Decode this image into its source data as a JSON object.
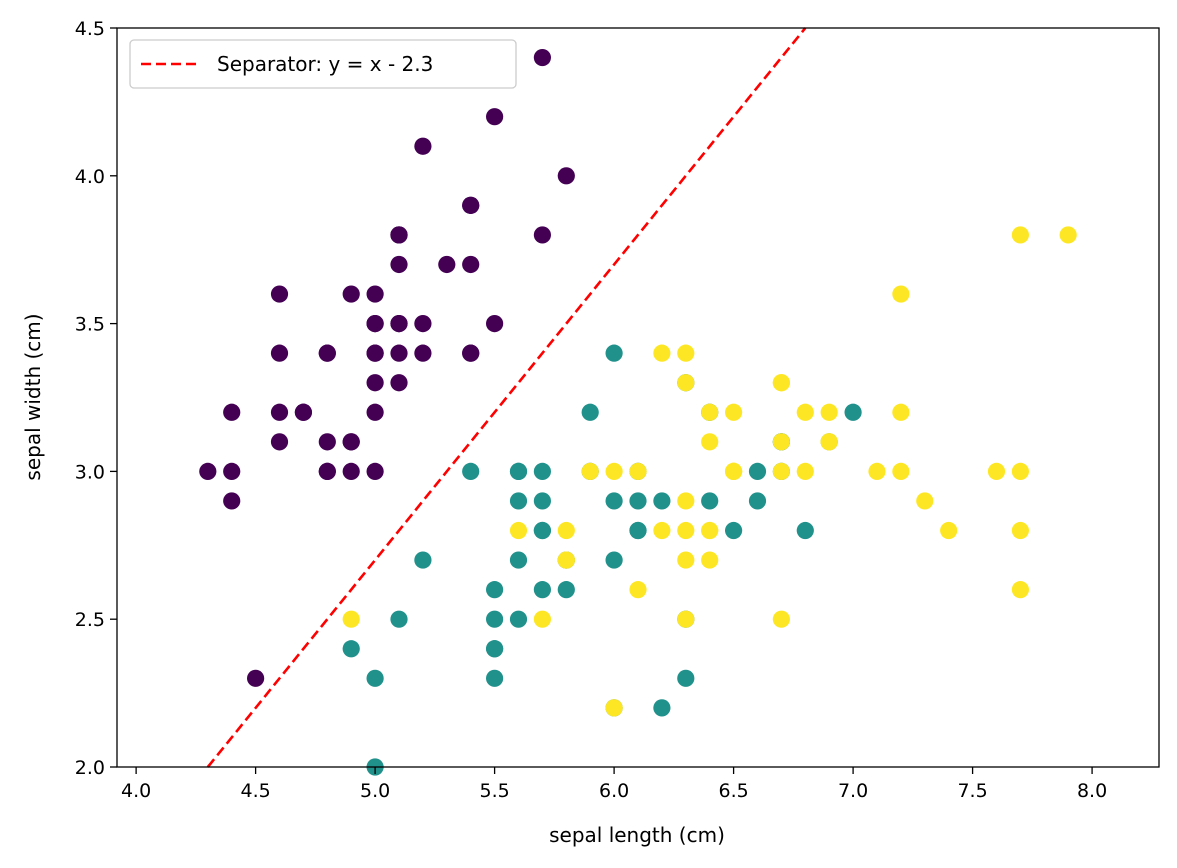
{
  "chart_data": {
    "type": "scatter",
    "title": "",
    "xlabel": "sepal length (cm)",
    "ylabel": "sepal width (cm)",
    "xlim": [
      3.92,
      8.28
    ],
    "ylim": [
      2.0,
      4.5
    ],
    "xticks": [
      "4.0",
      "4.5",
      "5.0",
      "5.5",
      "6.0",
      "6.5",
      "7.0",
      "7.5",
      "8.0"
    ],
    "yticks": [
      "2.0",
      "2.5",
      "3.0",
      "3.5",
      "4.0",
      "4.5"
    ],
    "grid": false,
    "legend": {
      "position": "top-left",
      "entries": [
        "Separator: y = x - 2.3"
      ]
    },
    "separator": {
      "label": "Separator: y = x - 2.3",
      "slope": 1,
      "intercept": -2.3,
      "style": "dashed",
      "color": "#ff0000"
    },
    "series": [
      {
        "color": "#440154",
        "points": [
          [
            5.1,
            3.5
          ],
          [
            4.9,
            3.0
          ],
          [
            4.7,
            3.2
          ],
          [
            4.6,
            3.1
          ],
          [
            5.0,
            3.6
          ],
          [
            5.4,
            3.9
          ],
          [
            4.6,
            3.4
          ],
          [
            5.0,
            3.4
          ],
          [
            4.4,
            2.9
          ],
          [
            4.9,
            3.1
          ],
          [
            5.4,
            3.7
          ],
          [
            4.8,
            3.4
          ],
          [
            4.8,
            3.0
          ],
          [
            4.3,
            3.0
          ],
          [
            5.8,
            4.0
          ],
          [
            5.7,
            4.4
          ],
          [
            5.4,
            3.9
          ],
          [
            5.1,
            3.5
          ],
          [
            5.7,
            3.8
          ],
          [
            5.1,
            3.8
          ],
          [
            5.4,
            3.4
          ],
          [
            5.1,
            3.7
          ],
          [
            4.6,
            3.6
          ],
          [
            5.1,
            3.3
          ],
          [
            4.8,
            3.4
          ],
          [
            5.0,
            3.0
          ],
          [
            5.0,
            3.4
          ],
          [
            5.2,
            3.5
          ],
          [
            5.2,
            3.4
          ],
          [
            4.7,
            3.2
          ],
          [
            4.8,
            3.1
          ],
          [
            5.4,
            3.4
          ],
          [
            5.2,
            4.1
          ],
          [
            5.5,
            4.2
          ],
          [
            4.9,
            3.1
          ],
          [
            5.0,
            3.2
          ],
          [
            5.5,
            3.5
          ],
          [
            4.9,
            3.6
          ],
          [
            4.4,
            3.0
          ],
          [
            5.1,
            3.4
          ],
          [
            5.0,
            3.5
          ],
          [
            4.5,
            2.3
          ],
          [
            4.4,
            3.2
          ],
          [
            5.0,
            3.5
          ],
          [
            5.1,
            3.8
          ],
          [
            4.8,
            3.0
          ],
          [
            5.1,
            3.8
          ],
          [
            4.6,
            3.2
          ],
          [
            5.3,
            3.7
          ],
          [
            5.0,
            3.3
          ]
        ]
      },
      {
        "color": "#21918c",
        "points": [
          [
            7.0,
            3.2
          ],
          [
            6.4,
            3.2
          ],
          [
            6.9,
            3.1
          ],
          [
            5.5,
            2.3
          ],
          [
            6.5,
            2.8
          ],
          [
            5.7,
            2.8
          ],
          [
            6.3,
            3.3
          ],
          [
            4.9,
            2.4
          ],
          [
            6.6,
            2.9
          ],
          [
            5.2,
            2.7
          ],
          [
            5.0,
            2.0
          ],
          [
            5.9,
            3.0
          ],
          [
            6.0,
            2.2
          ],
          [
            6.1,
            2.9
          ],
          [
            5.6,
            2.9
          ],
          [
            6.7,
            3.1
          ],
          [
            5.6,
            3.0
          ],
          [
            5.8,
            2.7
          ],
          [
            6.2,
            2.2
          ],
          [
            5.6,
            2.5
          ],
          [
            5.9,
            3.2
          ],
          [
            6.1,
            2.8
          ],
          [
            6.3,
            2.5
          ],
          [
            6.1,
            2.8
          ],
          [
            6.4,
            2.9
          ],
          [
            6.6,
            3.0
          ],
          [
            6.8,
            2.8
          ],
          [
            6.7,
            3.0
          ],
          [
            6.0,
            2.9
          ],
          [
            5.7,
            2.6
          ],
          [
            5.5,
            2.4
          ],
          [
            5.5,
            2.4
          ],
          [
            5.8,
            2.7
          ],
          [
            6.0,
            2.7
          ],
          [
            5.4,
            3.0
          ],
          [
            6.0,
            3.4
          ],
          [
            6.7,
            3.1
          ],
          [
            6.3,
            2.3
          ],
          [
            5.6,
            3.0
          ],
          [
            5.5,
            2.5
          ],
          [
            5.5,
            2.6
          ],
          [
            6.1,
            3.0
          ],
          [
            5.8,
            2.6
          ],
          [
            5.0,
            2.3
          ],
          [
            5.6,
            2.7
          ],
          [
            5.7,
            3.0
          ],
          [
            5.7,
            2.9
          ],
          [
            6.2,
            2.9
          ],
          [
            5.1,
            2.5
          ],
          [
            5.7,
            2.8
          ]
        ]
      },
      {
        "color": "#fde725",
        "points": [
          [
            6.3,
            3.3
          ],
          [
            5.8,
            2.7
          ],
          [
            7.1,
            3.0
          ],
          [
            6.3,
            2.9
          ],
          [
            6.5,
            3.0
          ],
          [
            7.6,
            3.0
          ],
          [
            4.9,
            2.5
          ],
          [
            7.3,
            2.9
          ],
          [
            6.7,
            2.5
          ],
          [
            7.2,
            3.6
          ],
          [
            6.5,
            3.2
          ],
          [
            6.4,
            2.7
          ],
          [
            6.8,
            3.0
          ],
          [
            5.7,
            2.5
          ],
          [
            5.8,
            2.8
          ],
          [
            6.4,
            3.2
          ],
          [
            6.5,
            3.0
          ],
          [
            7.7,
            3.8
          ],
          [
            7.7,
            2.6
          ],
          [
            6.0,
            2.2
          ],
          [
            6.9,
            3.2
          ],
          [
            5.6,
            2.8
          ],
          [
            7.7,
            2.8
          ],
          [
            6.3,
            2.7
          ],
          [
            6.7,
            3.3
          ],
          [
            7.2,
            3.2
          ],
          [
            6.2,
            2.8
          ],
          [
            6.1,
            3.0
          ],
          [
            6.4,
            2.8
          ],
          [
            7.2,
            3.0
          ],
          [
            7.4,
            2.8
          ],
          [
            7.9,
            3.8
          ],
          [
            6.4,
            2.8
          ],
          [
            6.3,
            2.8
          ],
          [
            6.1,
            2.6
          ],
          [
            7.7,
            3.0
          ],
          [
            6.3,
            3.4
          ],
          [
            6.4,
            3.1
          ],
          [
            6.0,
            3.0
          ],
          [
            6.9,
            3.1
          ],
          [
            6.7,
            3.1
          ],
          [
            6.9,
            3.1
          ],
          [
            5.8,
            2.7
          ],
          [
            6.8,
            3.2
          ],
          [
            6.7,
            3.3
          ],
          [
            6.7,
            3.0
          ],
          [
            6.3,
            2.5
          ],
          [
            6.5,
            3.0
          ],
          [
            6.2,
            3.4
          ],
          [
            5.9,
            3.0
          ]
        ]
      }
    ]
  }
}
